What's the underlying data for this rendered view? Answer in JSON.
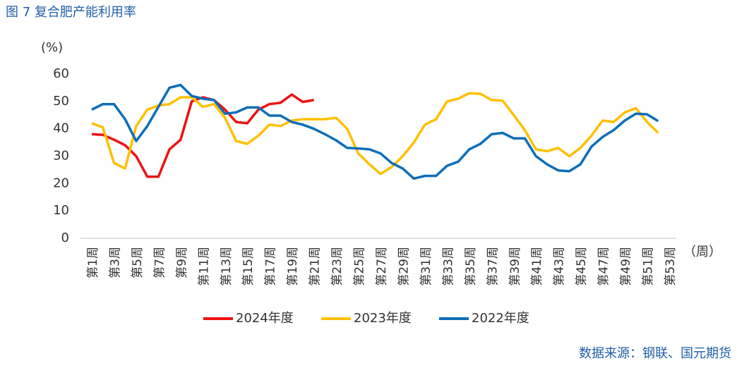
{
  "chart_data": {
    "type": "line",
    "title": "图 7  复合肥产能利用率",
    "y_label": "(%)",
    "x_label": "（周）",
    "source": "数据来源：钢联、国元期货",
    "categories": [
      "第1周",
      null,
      "第3周",
      null,
      "第5周",
      null,
      "第7周",
      null,
      "第9周",
      null,
      "第11周",
      null,
      "第13周",
      null,
      "第15周",
      null,
      "第17周",
      null,
      "第19周",
      null,
      "第21周",
      null,
      "第23周",
      null,
      "第25周",
      null,
      "第27周",
      null,
      "第29周",
      null,
      "第31周",
      null,
      "第33周",
      null,
      "第35周",
      null,
      "第37周",
      null,
      "第39周",
      null,
      "第41周",
      null,
      "第43周",
      null,
      "第45周",
      null,
      "第47周",
      null,
      "第49周",
      null,
      "第51周",
      null,
      "第53周"
    ],
    "ylim": [
      0,
      60
    ],
    "yticks": [
      0,
      10,
      20,
      30,
      40,
      50,
      60
    ],
    "legend": "bottom",
    "series": [
      {
        "name": "2024年度",
        "color": "#ee1111",
        "values": [
          38,
          37.8,
          36,
          34,
          30,
          22.5,
          22.5,
          32.5,
          36,
          50,
          51.5,
          50.5,
          47,
          42.5,
          42,
          47,
          49,
          49.5,
          52.5,
          49.8,
          50.5,
          null,
          null,
          null,
          null,
          null,
          null,
          null,
          null,
          null,
          null,
          null,
          null,
          null,
          null,
          null,
          null,
          null,
          null,
          null,
          null,
          null,
          null,
          null,
          null,
          null,
          null,
          null,
          null,
          null,
          null,
          null,
          null
        ]
      },
      {
        "name": "2023年度",
        "color": "#ffc000",
        "values": [
          42,
          40.5,
          27.5,
          25.5,
          41,
          47,
          48.5,
          49,
          51.5,
          51.5,
          48,
          49,
          44,
          35.5,
          34.5,
          37.5,
          41.5,
          41,
          43,
          43.5,
          43.5,
          43.5,
          44,
          40,
          31,
          27,
          23.5,
          26,
          30,
          35,
          41.5,
          43.5,
          50,
          51,
          53,
          52.8,
          50.5,
          50.3,
          45,
          39.5,
          32.5,
          31.8,
          33,
          30,
          33,
          37.5,
          43,
          42.5,
          46,
          47.5,
          42.5,
          38.5,
          null
        ]
      },
      {
        "name": "2022年度",
        "color": "#0e6eb8",
        "values": [
          47,
          49,
          49,
          43.5,
          35.5,
          41,
          48,
          55,
          56,
          52,
          51,
          50.5,
          45.5,
          46,
          47.8,
          47.8,
          44.8,
          44.8,
          42.5,
          41.5,
          40,
          38,
          35.8,
          33,
          32.8,
          32.5,
          31,
          27.5,
          25.5,
          21.8,
          22.8,
          22.8,
          26.5,
          28,
          32.5,
          34.5,
          38,
          38.5,
          36.5,
          36.5,
          30,
          27,
          24.8,
          24.5,
          27,
          33.5,
          37,
          39.5,
          43,
          45.5,
          45.3,
          42.8,
          null
        ]
      }
    ]
  }
}
